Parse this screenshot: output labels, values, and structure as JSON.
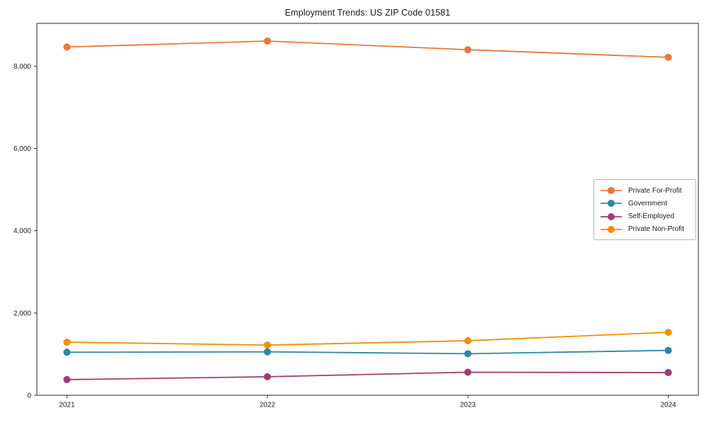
{
  "title": "Employment Trends: US ZIP Code 01581",
  "chart_data": {
    "type": "line",
    "title": "Employment Trends: US ZIP Code 01581",
    "xlabel": "",
    "ylabel": "",
    "x": [
      2021,
      2022,
      2023,
      2024
    ],
    "xtick_labels": [
      "2021",
      "2022",
      "2023",
      "2024"
    ],
    "yticks": [
      0,
      2000,
      4000,
      6000,
      8000
    ],
    "ytick_labels": [
      "0",
      "2,000",
      "4,000",
      "6,000",
      "8,000"
    ],
    "xlim": [
      2020.85,
      2024.15
    ],
    "ylim": [
      0,
      9040
    ],
    "grid": false,
    "background": "#ffffff",
    "axis_color": "#262626",
    "legend_position": "center-right",
    "marker": "circle",
    "series": [
      {
        "name": "Private For-Profit",
        "color": "#E8783C",
        "values": [
          8465,
          8610,
          8400,
          8215
        ]
      },
      {
        "name": "Government",
        "color": "#2E86AB",
        "values": [
          1045,
          1055,
          1010,
          1090
        ]
      },
      {
        "name": "Self-Employed",
        "color": "#A23B72",
        "values": [
          380,
          450,
          560,
          550
        ]
      },
      {
        "name": "Private Non-Profit",
        "color": "#F18F01",
        "values": [
          1290,
          1220,
          1325,
          1530
        ]
      }
    ]
  }
}
